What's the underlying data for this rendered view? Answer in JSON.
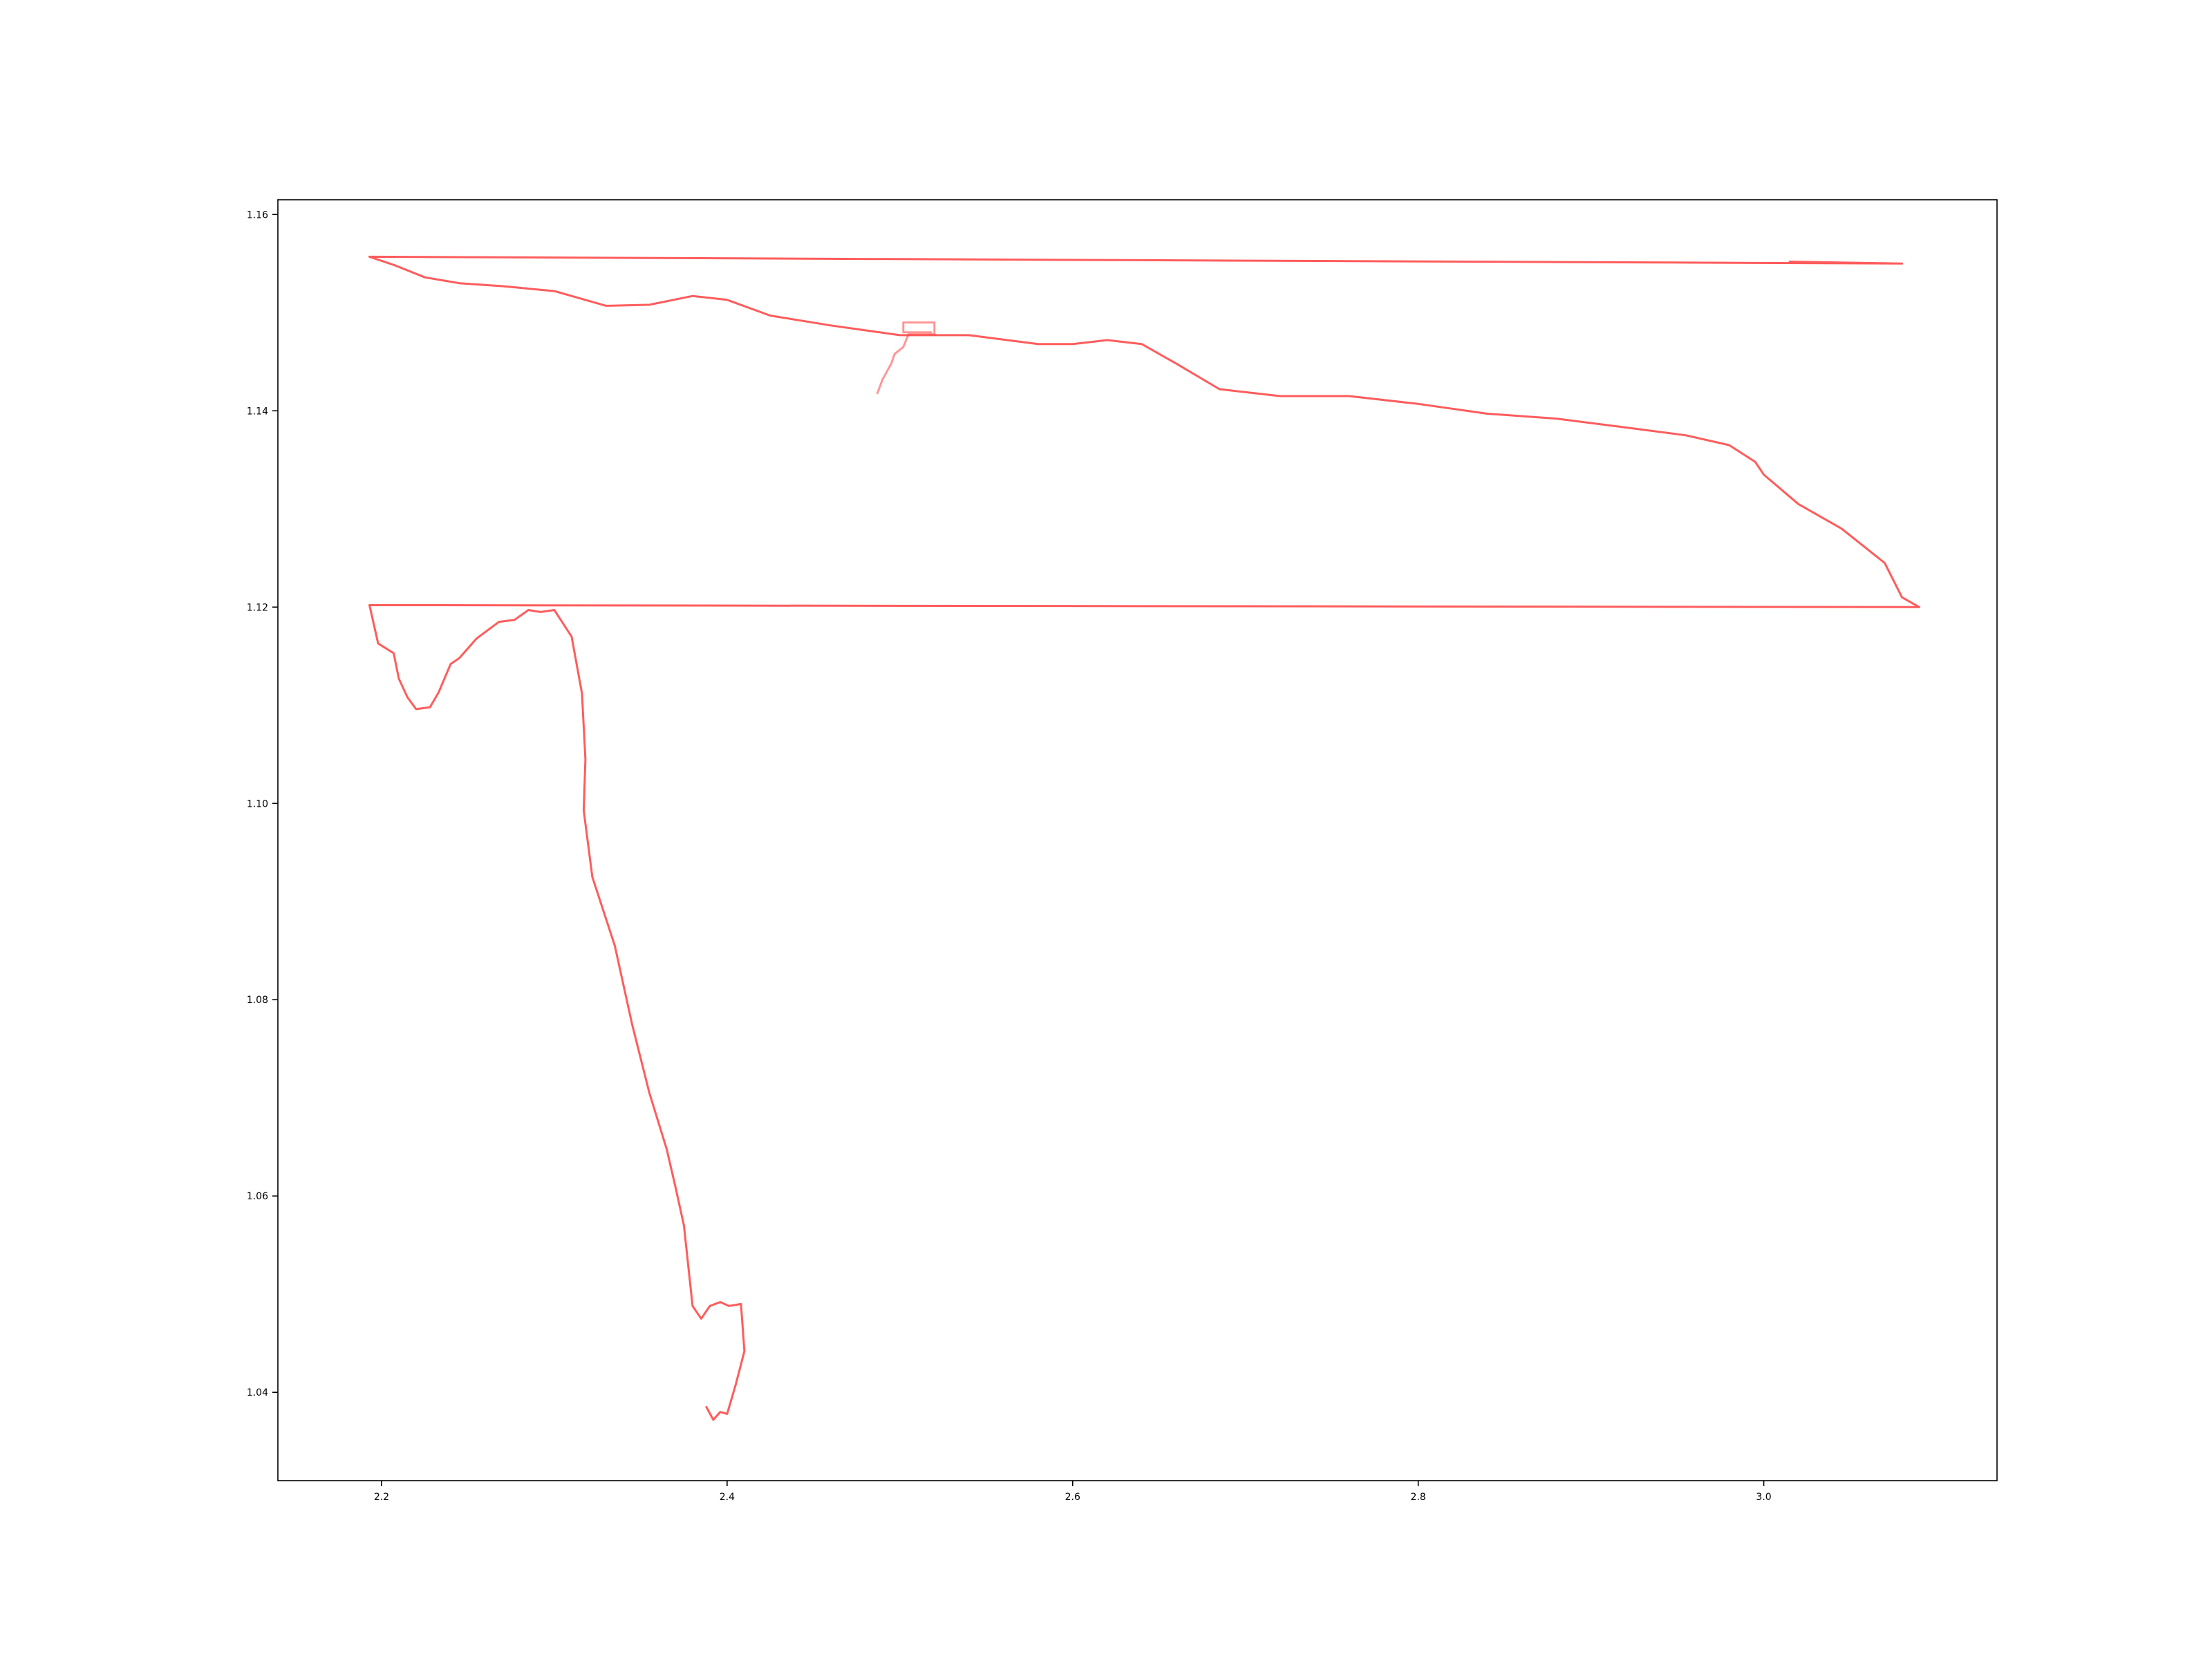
{
  "chart_data": {
    "type": "line",
    "title": "",
    "xlabel": "",
    "ylabel": "",
    "xlim": [
      2.14,
      3.135
    ],
    "ylim": [
      1.031,
      1.1615
    ],
    "grid": false,
    "line_color": "#ff4040",
    "x_ticks": [
      2.2,
      2.4,
      2.6,
      2.8,
      3.0
    ],
    "x_tick_labels": [
      "2.2",
      "2.4",
      "2.6",
      "2.8",
      "3.0"
    ],
    "y_ticks": [
      1.04,
      1.06,
      1.08,
      1.1,
      1.12,
      1.14,
      1.16
    ],
    "y_tick_labels": [
      "1.04",
      "1.06",
      "1.08",
      "1.10",
      "1.12",
      "1.14",
      "1.16"
    ],
    "series": [
      {
        "x": [
          3.015,
          3.08,
          2.193,
          2.208,
          2.225,
          2.245,
          2.27,
          2.3,
          2.33,
          2.355,
          2.38,
          2.4,
          2.425,
          2.46,
          2.5,
          2.54,
          2.58,
          2.6,
          2.62,
          2.64,
          2.66,
          2.685,
          2.72,
          2.76,
          2.8,
          2.84,
          2.88,
          2.92,
          2.955,
          2.98,
          2.995,
          3.0,
          3.02,
          3.045,
          3.07,
          3.08,
          3.09,
          2.193,
          2.198,
          2.207,
          2.21,
          2.215,
          2.22,
          2.228,
          2.233,
          2.24,
          2.245,
          2.255,
          2.268,
          2.277,
          2.285,
          2.292,
          2.3,
          2.31,
          2.316,
          2.318,
          2.317,
          2.322,
          2.335,
          2.345,
          2.355,
          2.365,
          2.37,
          2.375,
          2.38,
          2.385,
          2.39,
          2.396,
          2.401,
          2.408,
          2.41,
          2.405,
          2.4,
          2.396,
          2.392,
          2.388
        ],
        "y": [
          1.1552,
          1.155,
          1.1557,
          1.1548,
          1.1536,
          1.153,
          1.1527,
          1.1522,
          1.1507,
          1.1508,
          1.1517,
          1.1513,
          1.1497,
          1.1487,
          1.1477,
          1.1477,
          1.1468,
          1.1468,
          1.1472,
          1.1468,
          1.1448,
          1.1422,
          1.1415,
          1.1415,
          1.1407,
          1.1397,
          1.1392,
          1.1383,
          1.1375,
          1.1365,
          1.1348,
          1.1335,
          1.1305,
          1.128,
          1.1245,
          1.121,
          1.12,
          1.1202,
          1.1163,
          1.1153,
          1.1127,
          1.1108,
          1.1096,
          1.1098,
          1.1113,
          1.1142,
          1.1148,
          1.1168,
          1.1185,
          1.1187,
          1.1197,
          1.1195,
          1.1197,
          1.117,
          1.1112,
          1.1045,
          1.0993,
          1.0925,
          1.0855,
          1.0775,
          1.0705,
          1.0648,
          1.061,
          1.057,
          1.0488,
          1.0475,
          1.0488,
          1.0492,
          1.0488,
          1.049,
          1.0442,
          1.0408,
          1.0378,
          1.038,
          1.0372,
          1.0385
        ]
      },
      {
        "x": [
          2.487,
          2.49,
          2.495,
          2.497,
          2.502,
          2.505,
          2.52,
          2.52,
          2.502,
          2.502,
          2.518
        ],
        "y": [
          1.1418,
          1.1432,
          1.1448,
          1.1458,
          1.1465,
          1.1478,
          1.1478,
          1.149,
          1.149,
          1.148,
          1.148
        ]
      }
    ]
  }
}
